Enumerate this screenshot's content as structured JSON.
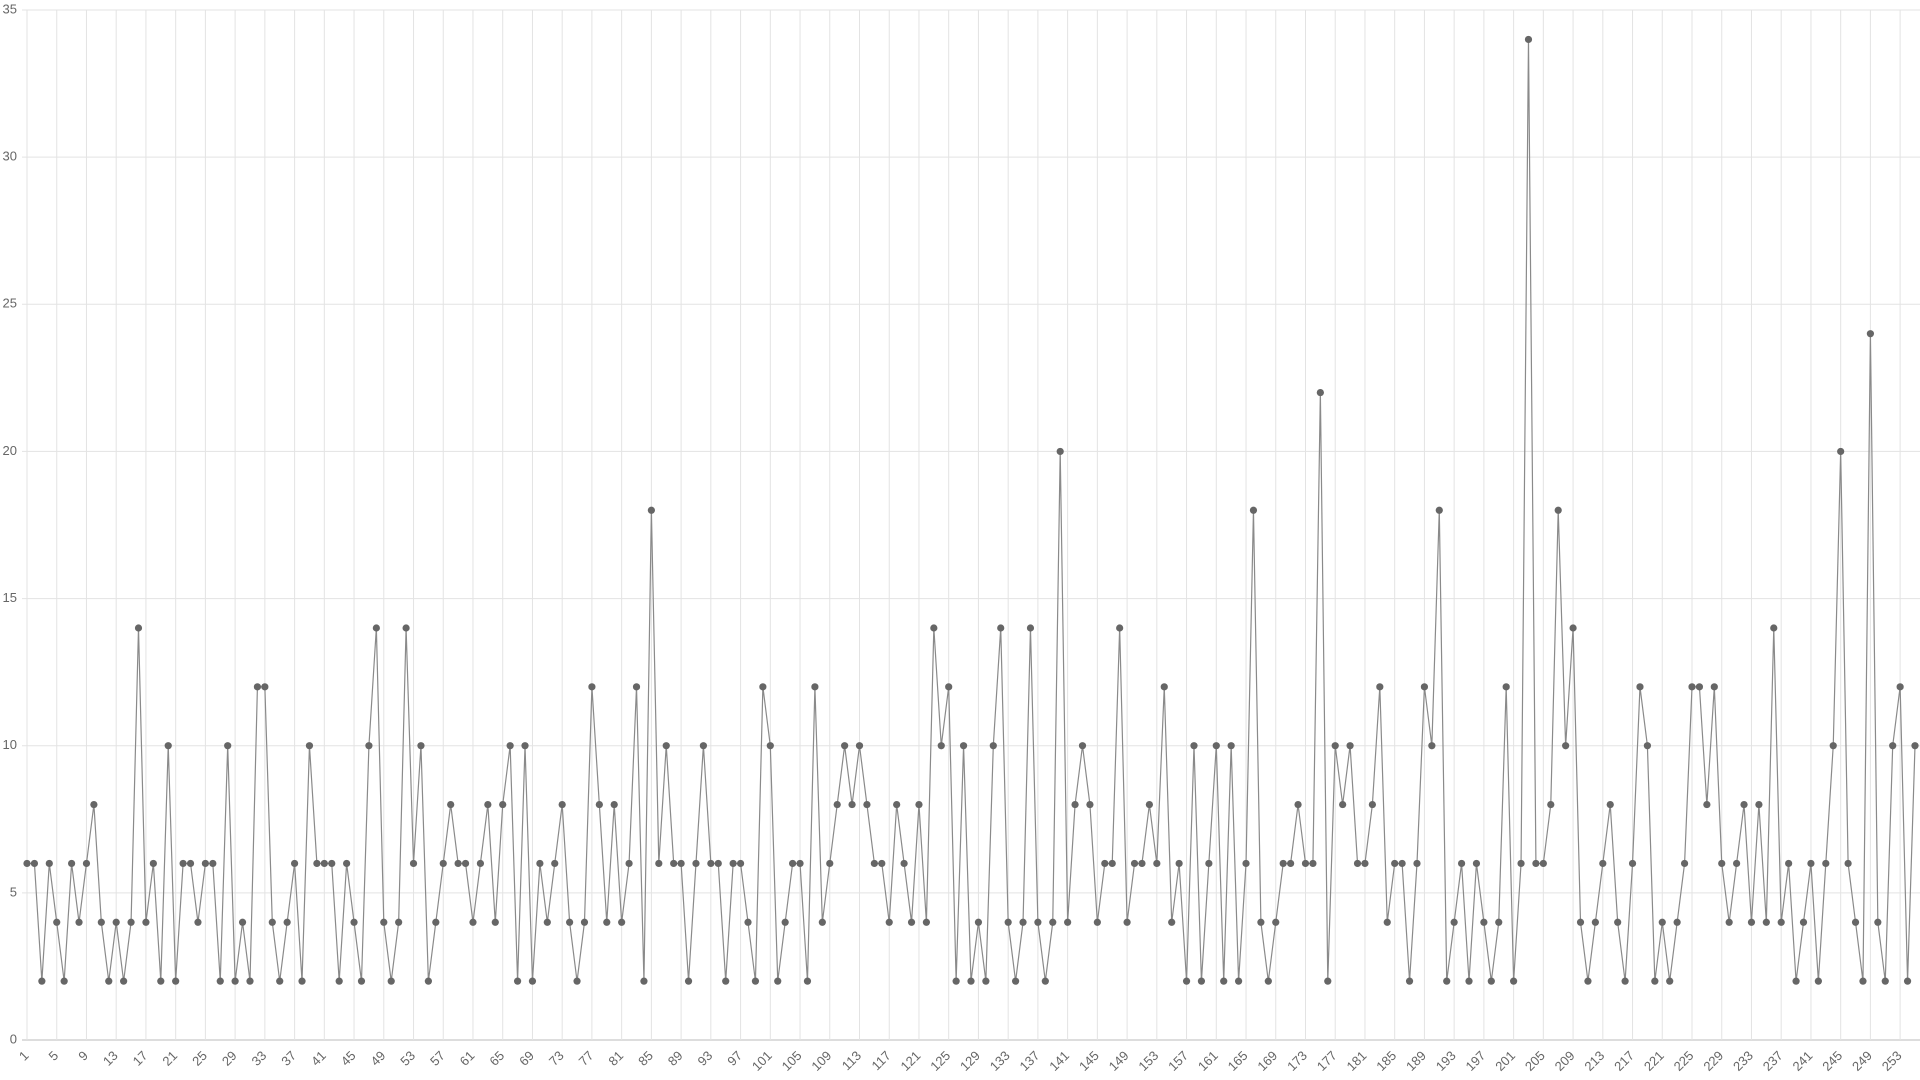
{
  "chart_data": {
    "type": "line",
    "categories": [
      "1",
      null,
      null,
      null,
      "5",
      null,
      null,
      null,
      "9",
      null,
      null,
      null,
      "13",
      null,
      null,
      null,
      "17",
      null,
      null,
      null,
      "21",
      null,
      null,
      null,
      "25",
      null,
      null,
      null,
      "29",
      null,
      null,
      null,
      "33",
      null,
      null,
      null,
      "37",
      null,
      null,
      null,
      "41",
      null,
      null,
      null,
      "45",
      null,
      null,
      null,
      "49",
      null,
      null,
      null,
      "53",
      null,
      null,
      null,
      "57",
      null,
      null,
      null,
      "61",
      null,
      null,
      null,
      "65",
      null,
      null,
      null,
      "69",
      null,
      null,
      null,
      "73",
      null,
      null,
      null,
      "77",
      null,
      null,
      null,
      "81",
      null,
      null,
      null,
      "85",
      null,
      null,
      null,
      "89",
      null,
      null,
      null,
      "93",
      null,
      null,
      null,
      "97",
      null,
      null,
      null,
      "101",
      null,
      null,
      null,
      "105",
      null,
      null,
      null,
      "109",
      null,
      null,
      null,
      "113",
      null,
      null,
      null,
      "117",
      null,
      null,
      null,
      "121",
      null,
      null,
      null,
      "125",
      null,
      null,
      null,
      "129",
      null,
      null,
      null,
      "133",
      null,
      null,
      null,
      "137",
      null,
      null,
      null,
      "141",
      null,
      null,
      null,
      "145",
      null,
      null,
      null,
      "149",
      null,
      null,
      null,
      "153",
      null,
      null,
      null,
      "157",
      null,
      null,
      null,
      "161",
      null,
      null,
      null,
      "165",
      null,
      null,
      null,
      "169",
      null,
      null,
      null,
      "173",
      null,
      null,
      null,
      "177",
      null,
      null,
      null,
      "181",
      null,
      null,
      null,
      "185",
      null,
      null,
      null,
      "189",
      null,
      null,
      null,
      "193",
      null,
      null,
      null,
      "197",
      null,
      null,
      null,
      "201",
      null,
      null,
      null,
      "205",
      null,
      null,
      null,
      "209",
      null,
      null,
      null,
      "213",
      null,
      null,
      null,
      "217",
      null,
      null,
      null,
      "221",
      null,
      null,
      null,
      "225",
      null,
      null,
      null,
      "229",
      null,
      null,
      null,
      "233",
      null,
      null,
      null,
      "237",
      null,
      null,
      null,
      "241",
      null,
      null,
      null,
      "245",
      null,
      null,
      null,
      "249",
      null,
      null,
      null,
      "253",
      null,
      null
    ],
    "values": [
      6,
      6,
      2,
      6,
      4,
      2,
      6,
      4,
      6,
      8,
      4,
      2,
      4,
      2,
      4,
      14,
      4,
      6,
      2,
      10,
      2,
      6,
      6,
      4,
      6,
      6,
      2,
      10,
      2,
      4,
      2,
      12,
      12,
      4,
      2,
      4,
      6,
      2,
      10,
      6,
      6,
      6,
      2,
      6,
      4,
      2,
      10,
      14,
      4,
      2,
      4,
      14,
      6,
      10,
      2,
      4,
      6,
      8,
      6,
      6,
      4,
      6,
      8,
      4,
      8,
      10,
      2,
      10,
      2,
      6,
      4,
      6,
      8,
      4,
      2,
      4,
      12,
      8,
      4,
      8,
      4,
      6,
      12,
      2,
      18,
      6,
      10,
      6,
      6,
      2,
      6,
      10,
      6,
      6,
      2,
      6,
      6,
      4,
      2,
      12,
      10,
      2,
      4,
      6,
      6,
      2,
      12,
      4,
      6,
      8,
      10,
      8,
      10,
      8,
      6,
      6,
      4,
      8,
      6,
      4,
      8,
      4,
      14,
      10,
      12,
      2,
      10,
      2,
      4,
      2,
      10,
      14,
      4,
      2,
      4,
      14,
      4,
      2,
      4,
      20,
      4,
      8,
      10,
      8,
      4,
      6,
      6,
      14,
      4,
      6,
      6,
      8,
      6,
      12,
      4,
      6,
      2,
      10,
      2,
      6,
      10,
      2,
      10,
      2,
      6,
      18,
      4,
      2,
      4,
      6,
      6,
      8,
      6,
      6,
      22,
      2,
      10,
      8,
      10,
      6,
      6,
      8,
      12,
      4,
      6,
      6,
      2,
      6,
      12,
      10,
      18,
      2,
      4,
      6,
      2,
      6,
      4,
      2,
      4,
      12,
      2,
      6,
      34,
      6,
      6,
      8,
      18,
      10,
      14,
      4,
      2,
      4,
      6,
      8,
      4,
      2,
      6,
      12,
      10,
      2,
      4,
      2,
      4,
      6,
      12,
      12,
      8,
      12,
      6,
      4,
      6,
      8,
      4,
      8,
      4,
      14,
      4,
      6,
      2,
      4,
      6,
      2,
      6,
      10,
      20,
      6,
      4,
      2,
      24,
      4,
      2,
      10,
      12,
      2,
      10
    ],
    "line_color": "#8a8a8a",
    "marker_color": "#666666",
    "ylim": [
      0,
      35
    ],
    "yticks": [
      0,
      5,
      10,
      15,
      20,
      25,
      30,
      35
    ],
    "grid": true
  }
}
